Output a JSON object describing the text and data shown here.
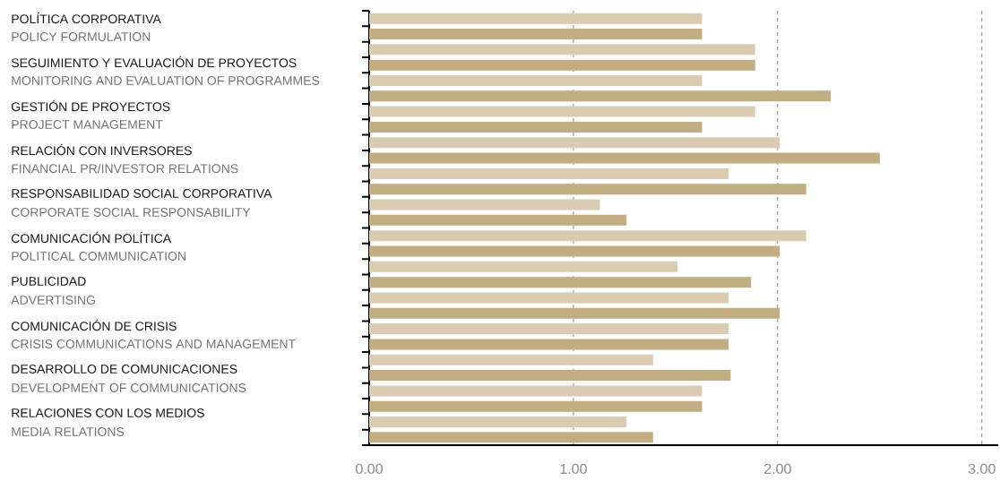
{
  "chart_data": {
    "type": "bar",
    "orientation": "horizontal",
    "categories": [
      null,
      null,
      null,
      null,
      null,
      null,
      null,
      null,
      null,
      null,
      null,
      null,
      null,
      null
    ],
    "series": [
      {
        "color": "#d9ccb2",
        "values": [
          1.63,
          1.89,
          1.63,
          1.89,
          2.01,
          1.76,
          1.13,
          2.14,
          1.51,
          1.76,
          1.76,
          1.39,
          1.63,
          1.26
        ]
      },
      {
        "color": "#c2ad83",
        "values": [
          1.63,
          1.89,
          2.26,
          1.63,
          2.5,
          2.14,
          1.26,
          2.01,
          1.87,
          2.01,
          1.76,
          1.77,
          1.63,
          1.39
        ]
      }
    ],
    "xlim": [
      0,
      3.08
    ],
    "xticks": [
      {
        "value": 0,
        "label": "0.00"
      },
      {
        "value": 1,
        "label": "1.00"
      },
      {
        "value": 2,
        "label": "2.00"
      },
      {
        "value": 3,
        "label": "3.00"
      }
    ],
    "grid": "x",
    "tick_labels": "x",
    "annotations": [
      "POLÍTICA CORPORATIVA",
      "POLICY FORMULATION",
      "SEGUIMIENTO Y EVALUACIÓN DE PROYECTOS",
      "MONITORING AND EVALUATION OF PROGRAMMES",
      "GESTIÓN DE PROYECTOS",
      "PROJECT MANAGEMENT",
      "RELACIÓN CON INVERSORES",
      "FINANCIAL PR/INVESTOR RELATIONS",
      "RESPONSABILIDAD SOCIAL CORPORATIVA",
      "CORPORATE SOCIAL RESPONSABILITY",
      "COMUNICACIÓN POLÍTICA",
      "POLITICAL COMMUNICATION",
      "PUBLICIDAD",
      "ADVERTISING",
      "COMUNICACIÓN DE CRISIS",
      "CRISIS COMMUNICATIONS AND MANAGEMENT",
      "DESARROLLO DE COMUNICACIONES",
      "DEVELOPMENT OF COMMUNICATIONS",
      "RELACIONES CON LOS MEDIOS",
      "MEDIA RELATIONS"
    ]
  }
}
